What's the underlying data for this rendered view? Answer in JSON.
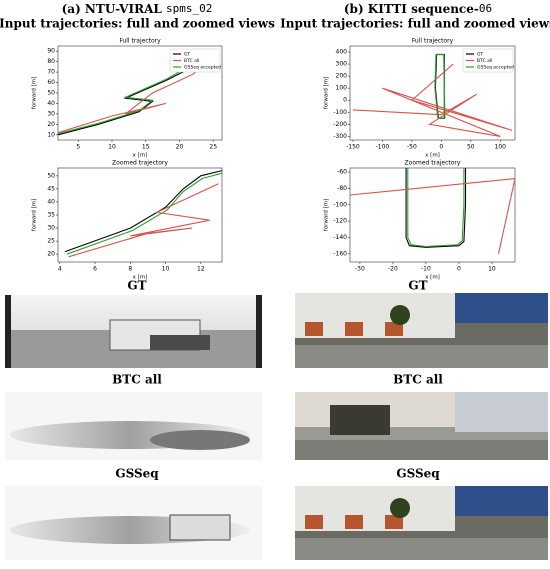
{
  "panels": [
    {
      "title_prefix": "(a) NTU-VIRAL",
      "title_code": "spms_02",
      "subtitle": "Input trajectories: full and zoomed views",
      "images": [
        {
          "label": "GT"
        },
        {
          "label": "BTC all"
        },
        {
          "label": "GSSeq"
        }
      ]
    },
    {
      "title_prefix": "(b) KITTI sequence-",
      "title_code": "06",
      "subtitle": "Input trajectories: full and zoomed views",
      "images": [
        {
          "label": "GT"
        },
        {
          "label": "BTC all"
        },
        {
          "label": "GSSeq"
        }
      ]
    }
  ],
  "chart_data": [
    {
      "type": "line",
      "title": "Full trajectory",
      "xlabel": "x [m]",
      "ylabel": "forward [m]",
      "xlim": [
        2,
        26.3
      ],
      "ylim": [
        5,
        95
      ],
      "xticks": [
        5,
        10,
        15,
        20,
        25
      ],
      "yticks": [
        10,
        20,
        30,
        40,
        50,
        60,
        70,
        80,
        90
      ],
      "legend": "upper right",
      "series": [
        {
          "name": "GT",
          "color": "#000000",
          "x": [
            2,
            8,
            14,
            16,
            12,
            18,
            22
          ],
          "values": [
            10,
            20,
            32,
            42,
            45,
            62,
            75
          ]
        },
        {
          "name": "BTC all",
          "color": "#d9534f",
          "x": [
            2,
            10,
            18,
            12,
            16,
            22,
            24
          ],
          "values": [
            12,
            28,
            40,
            30,
            50,
            68,
            80
          ]
        },
        {
          "name": "GSSeq accepted",
          "color": "#2ca02c",
          "x": [
            2,
            8,
            14,
            16,
            12,
            18,
            21
          ],
          "values": [
            11,
            21,
            33,
            43,
            46,
            63,
            74
          ]
        }
      ]
    },
    {
      "type": "line",
      "title": "Zoomed trajectory",
      "xlabel": "x [m]",
      "ylabel": "forward [m]",
      "xlim": [
        3.9,
        13.2
      ],
      "ylim": [
        17,
        53
      ],
      "xticks": [
        4,
        6,
        8,
        10,
        12
      ],
      "yticks": [
        20,
        25,
        30,
        35,
        40,
        45,
        50
      ],
      "series": [
        {
          "name": "GT",
          "color": "#000000",
          "x": [
            4.3,
            8,
            10,
            11,
            12,
            13.2
          ],
          "values": [
            21,
            30,
            38,
            45,
            50,
            52
          ]
        },
        {
          "name": "BTC all",
          "color": "#d9534f",
          "x": [
            4.5,
            9,
            11.5,
            8,
            12.5,
            9.5,
            13
          ],
          "values": [
            19,
            28,
            30,
            27,
            33,
            36,
            47
          ]
        },
        {
          "name": "GSSeq accepted",
          "color": "#2ca02c",
          "x": [
            4.4,
            8.1,
            10.1,
            11,
            12.1,
            13.2
          ],
          "values": [
            20,
            29,
            37,
            44,
            49,
            51
          ]
        }
      ]
    },
    {
      "type": "line",
      "title": "Full trajectory",
      "xlabel": "x [m]",
      "ylabel": "forward [m]",
      "xlim": [
        -155,
        125
      ],
      "ylim": [
        -330,
        450
      ],
      "xticks": [
        -150,
        -100,
        -50,
        0,
        50,
        100
      ],
      "yticks": [
        -300,
        -200,
        -100,
        0,
        100,
        200,
        300,
        400
      ],
      "legend": "upper right",
      "series": [
        {
          "name": "GT",
          "color": "#000000",
          "x": [
            -5,
            -10,
            -8,
            5,
            5,
            -5
          ],
          "values": [
            -150,
            100,
            380,
            380,
            -150,
            -150
          ]
        },
        {
          "name": "BTC all",
          "color": "#d9534f",
          "x": [
            -150,
            0,
            60,
            -20,
            100,
            -100,
            120,
            -50,
            20
          ],
          "values": [
            -80,
            -120,
            50,
            -200,
            -300,
            100,
            -250,
            0,
            300
          ]
        },
        {
          "name": "GSSeq accepted",
          "color": "#2ca02c",
          "x": [
            -6,
            -11,
            -9,
            4,
            6,
            -6
          ],
          "values": [
            -148,
            102,
            378,
            379,
            -148,
            -148
          ]
        }
      ]
    },
    {
      "type": "line",
      "title": "Zoomed trajectory",
      "xlabel": "x [m]",
      "ylabel": "forward [m]",
      "xlim": [
        -33,
        17
      ],
      "ylim": [
        -170,
        -55
      ],
      "xticks": [
        -30,
        -20,
        -10,
        0,
        10
      ],
      "yticks": [
        -160,
        -140,
        -120,
        -100,
        -80,
        -60
      ],
      "series": [
        {
          "name": "GT",
          "color": "#000000",
          "x": [
            -16,
            -16,
            -15,
            -10,
            0,
            1.5,
            2,
            2
          ],
          "values": [
            -55,
            -140,
            -150,
            -152,
            -150,
            -145,
            -100,
            -55
          ]
        },
        {
          "name": "BTC all",
          "color": "#d9534f",
          "x": [
            -33,
            17,
            12
          ],
          "values": [
            -88,
            -68,
            -160
          ]
        },
        {
          "name": "GSSeq accepted",
          "color": "#2ca02c",
          "x": [
            -15.5,
            -15.5,
            -14.5,
            -10,
            -0.5,
            1,
            1.5,
            1.5
          ],
          "values": [
            -55,
            -140,
            -149,
            -151,
            -149,
            -144,
            -100,
            -55
          ]
        }
      ]
    }
  ]
}
